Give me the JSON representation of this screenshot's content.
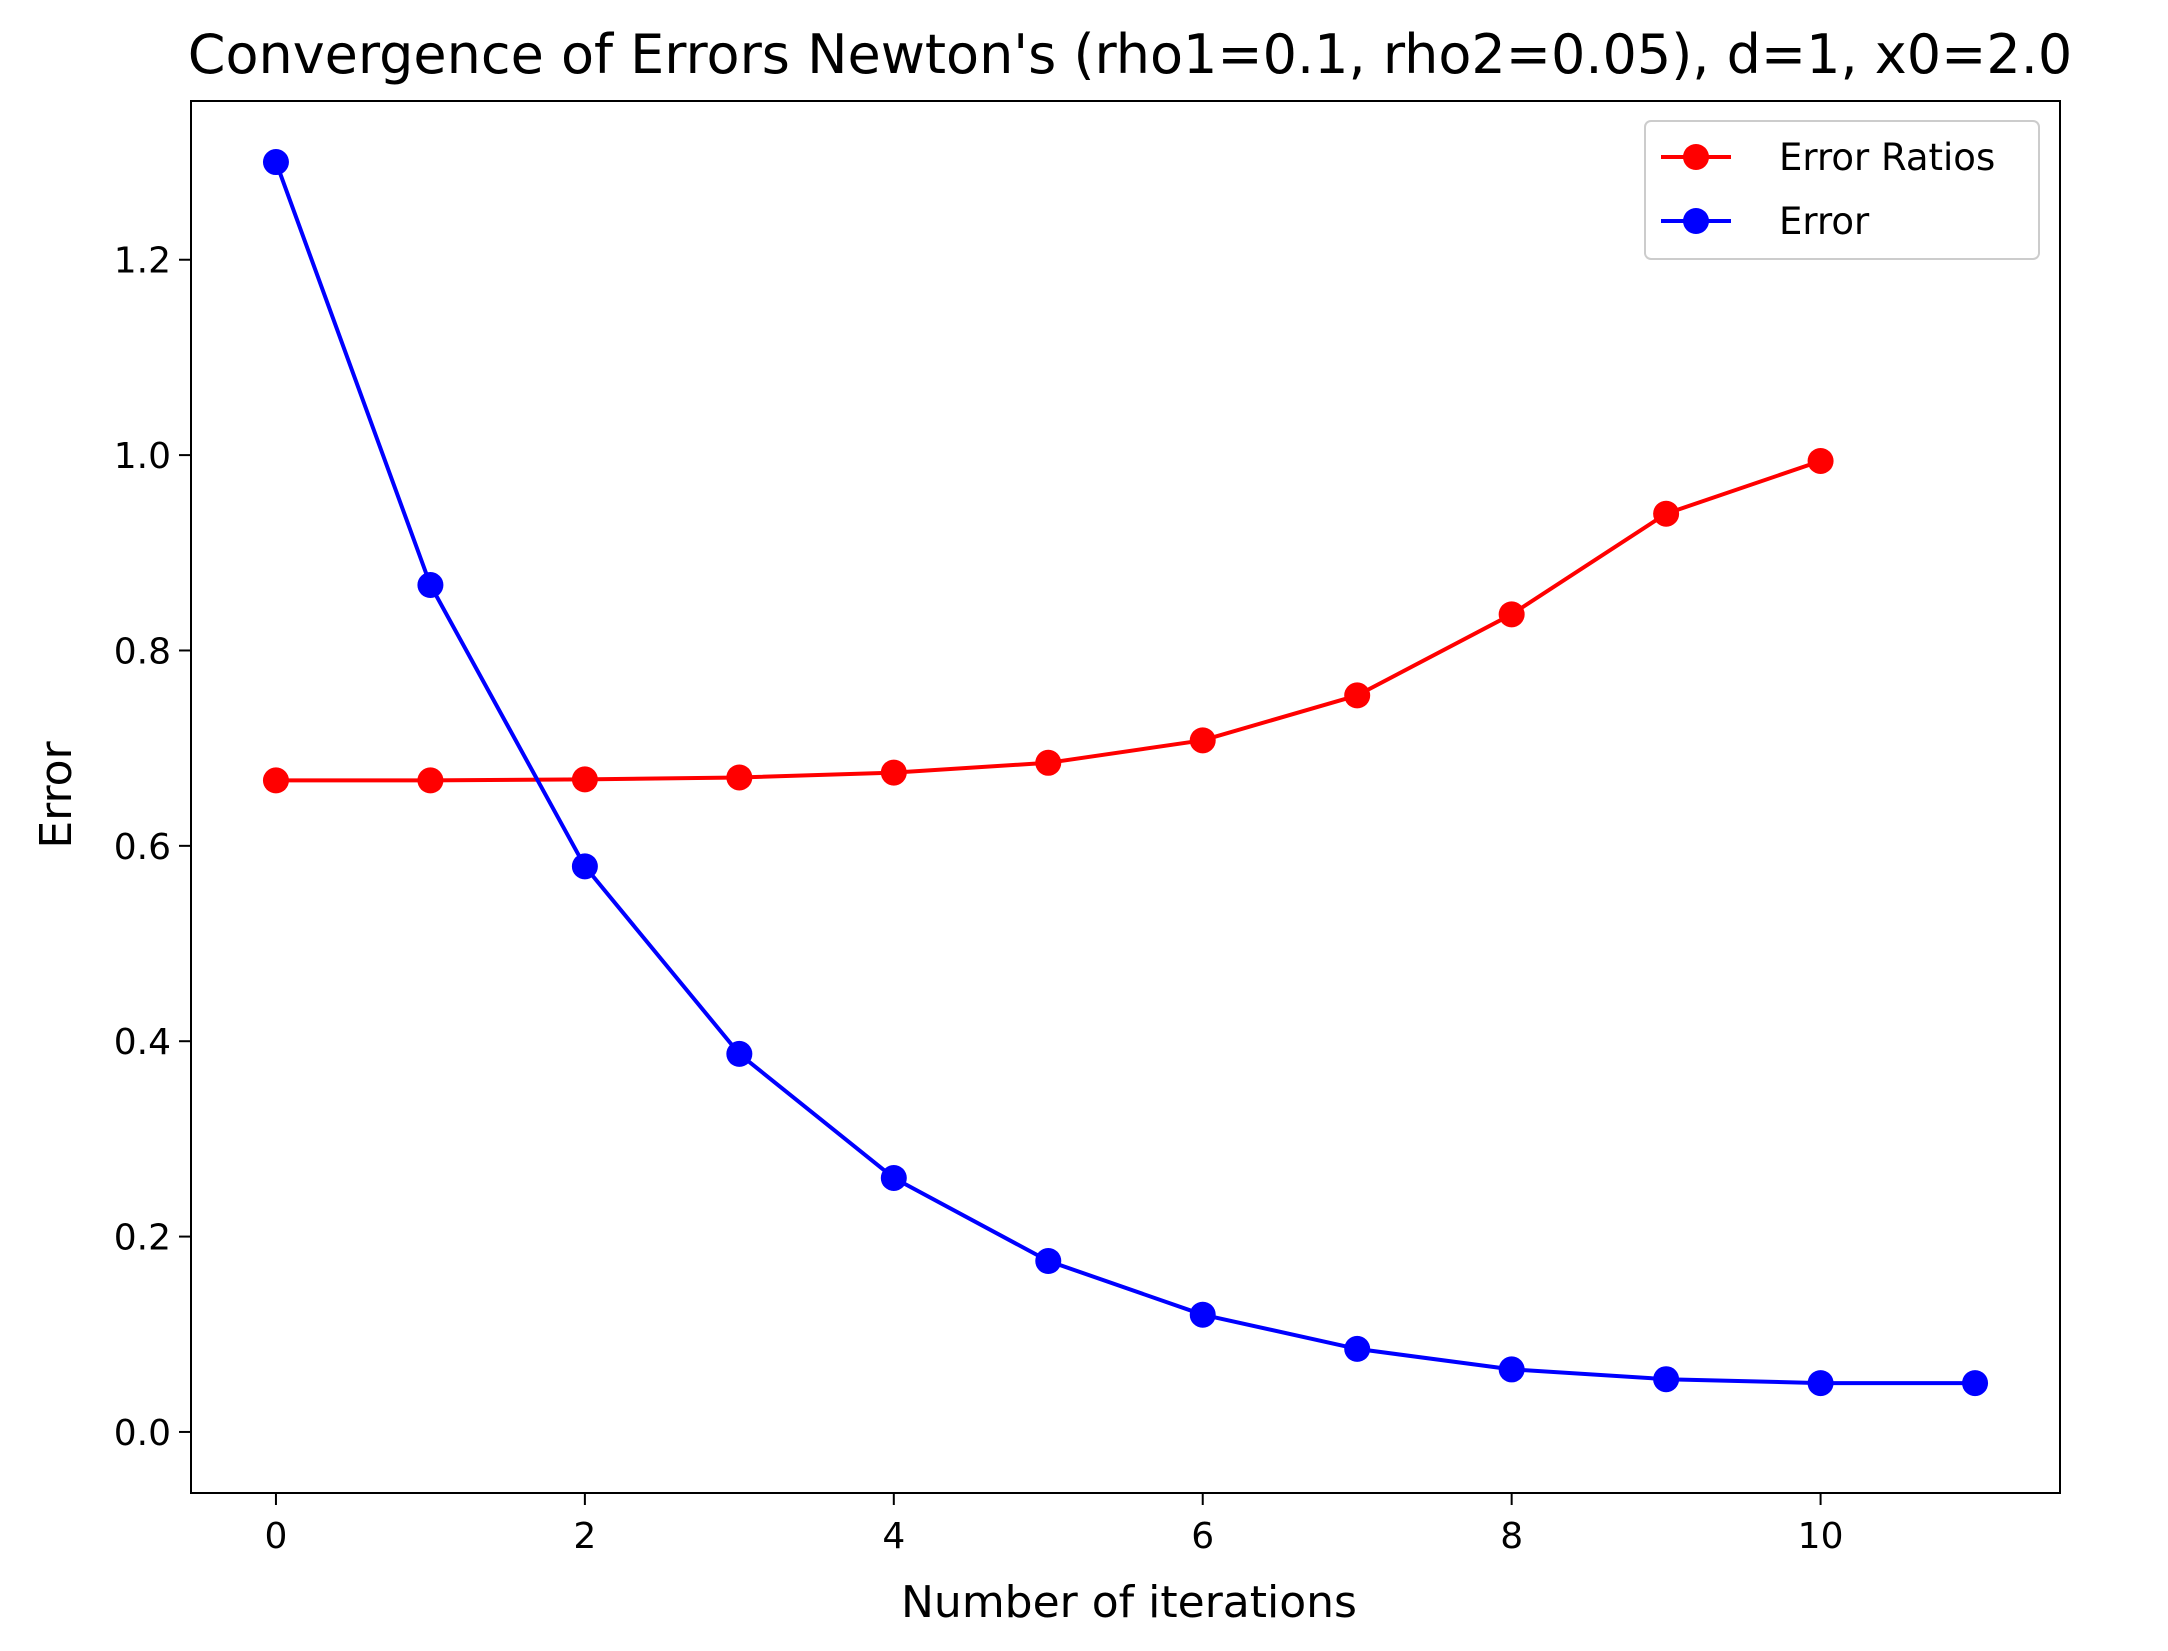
{
  "chart_data": {
    "type": "line",
    "title": "Convergence of Errors Newton's (rho1=0.1, rho2=0.05), d=1, x0=2.0",
    "xlabel": "Number of iterations",
    "ylabel": "Error",
    "xlim": [
      -0.55,
      11.55
    ],
    "ylim": [
      -0.0625,
      1.3625
    ],
    "xticks": [
      0,
      2,
      4,
      6,
      8,
      10
    ],
    "xtick_labels": [
      "0",
      "2",
      "4",
      "6",
      "8",
      "10"
    ],
    "yticks": [
      0.0,
      0.2,
      0.4,
      0.6,
      0.8,
      1.0,
      1.2
    ],
    "ytick_labels": [
      "0.0",
      "0.2",
      "0.4",
      "0.6",
      "0.8",
      "1.0",
      "1.2"
    ],
    "grid": false,
    "legend_position": "top-right",
    "series": [
      {
        "name": "Error Ratios",
        "color": "#ff0000",
        "marker": "circle",
        "x": [
          0,
          1,
          2,
          3,
          4,
          5,
          6,
          7,
          8,
          9,
          10
        ],
        "values": [
          0.667,
          0.667,
          0.668,
          0.67,
          0.675,
          0.685,
          0.708,
          0.754,
          0.837,
          0.94,
          0.994
        ]
      },
      {
        "name": "Error",
        "color": "#0000ff",
        "marker": "circle",
        "x": [
          0,
          1,
          2,
          3,
          4,
          5,
          6,
          7,
          8,
          9,
          10,
          11
        ],
        "values": [
          1.3,
          0.867,
          0.579,
          0.387,
          0.26,
          0.175,
          0.12,
          0.085,
          0.064,
          0.054,
          0.05,
          0.05
        ]
      }
    ]
  }
}
